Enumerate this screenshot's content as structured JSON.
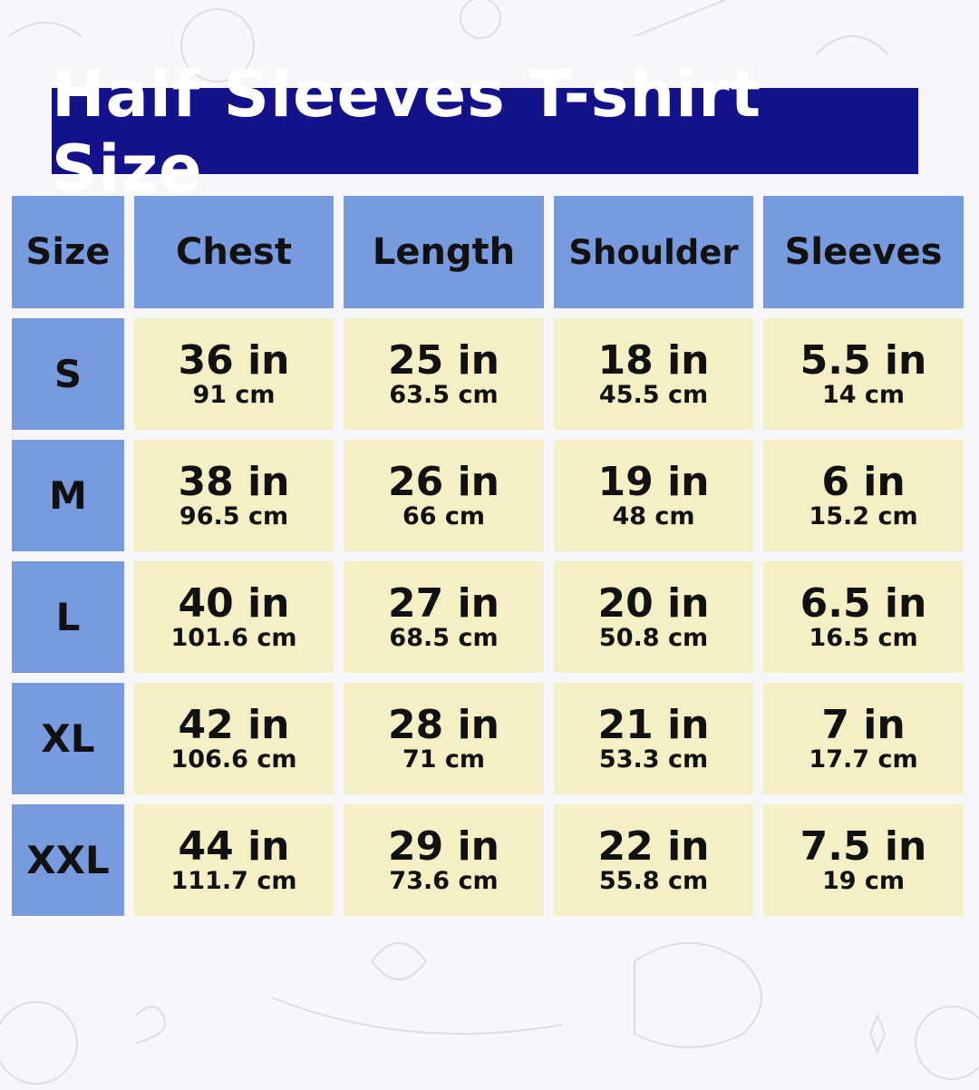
{
  "title": "Half Sleeves T-shirt Size",
  "colors": {
    "title_bg": "#13128a",
    "header_bg": "#789ade",
    "cell_bg": "#f5efc6",
    "background": "#f7f7f9"
  },
  "headers": [
    "Size",
    "Chest",
    "Length",
    "Shoulder",
    "Sleeves"
  ],
  "rows": [
    {
      "size": "S",
      "values": [
        {
          "in": "36 in",
          "cm": "91 cm"
        },
        {
          "in": "25 in",
          "cm": "63.5 cm"
        },
        {
          "in": "18 in",
          "cm": "45.5 cm"
        },
        {
          "in": "5.5 in",
          "cm": "14 cm"
        }
      ]
    },
    {
      "size": "M",
      "values": [
        {
          "in": "38 in",
          "cm": "96.5 cm"
        },
        {
          "in": "26 in",
          "cm": "66 cm"
        },
        {
          "in": "19 in",
          "cm": "48 cm"
        },
        {
          "in": "6 in",
          "cm": "15.2 cm"
        }
      ]
    },
    {
      "size": "L",
      "values": [
        {
          "in": "40 in",
          "cm": "101.6 cm"
        },
        {
          "in": "27 in",
          "cm": "68.5 cm"
        },
        {
          "in": "20 in",
          "cm": "50.8 cm"
        },
        {
          "in": "6.5 in",
          "cm": "16.5 cm"
        }
      ]
    },
    {
      "size": "XL",
      "values": [
        {
          "in": "42 in",
          "cm": "106.6 cm"
        },
        {
          "in": "28 in",
          "cm": "71 cm"
        },
        {
          "in": "21 in",
          "cm": "53.3 cm"
        },
        {
          "in": "7 in",
          "cm": "17.7 cm"
        }
      ]
    },
    {
      "size": "XXL",
      "values": [
        {
          "in": "44 in",
          "cm": "111.7 cm"
        },
        {
          "in": "29 in",
          "cm": "73.6 cm"
        },
        {
          "in": "22 in",
          "cm": "55.8 cm"
        },
        {
          "in": "7.5 in",
          "cm": "19 cm"
        }
      ]
    }
  ]
}
